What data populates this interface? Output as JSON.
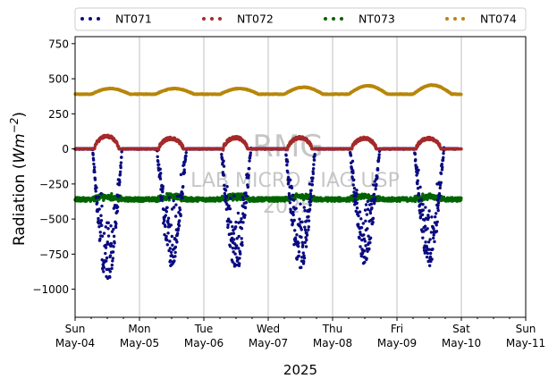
{
  "chart_data": {
    "type": "scatter",
    "title": "",
    "xlabel": "2025",
    "ylabel_main": "Radiation (",
    "ylabel_unit": "Wm",
    "ylabel_exp": "−2",
    "ylabel_close": ")",
    "ylim": [
      -1200,
      800
    ],
    "xlim_days": [
      0,
      7
    ],
    "yticks": [
      {
        "value": 750,
        "label": "750"
      },
      {
        "value": 500,
        "label": "500"
      },
      {
        "value": 250,
        "label": "250"
      },
      {
        "value": 0,
        "label": "0"
      },
      {
        "value": -250,
        "label": "−250"
      },
      {
        "value": -500,
        "label": "−500"
      },
      {
        "value": -750,
        "label": "−750"
      },
      {
        "value": -1000,
        "label": "−1000"
      }
    ],
    "xticks": [
      {
        "day": 0,
        "label1": "Sun",
        "label2": "May-04"
      },
      {
        "day": 1,
        "label1": "Mon",
        "label2": "May-05"
      },
      {
        "day": 2,
        "label1": "Tue",
        "label2": "May-06"
      },
      {
        "day": 3,
        "label1": "Wed",
        "label2": "May-07"
      },
      {
        "day": 4,
        "label1": "Thu",
        "label2": "May-08"
      },
      {
        "day": 5,
        "label1": "Fri",
        "label2": "May-09"
      },
      {
        "day": 6,
        "label1": "Sat",
        "label2": "May-10"
      },
      {
        "day": 7,
        "label1": "Sun",
        "label2": "May-11"
      }
    ],
    "grid": "x",
    "legend_position": "top",
    "watermark": [
      "RMG",
      "LAB MICRO - IAG USP",
      "2025"
    ],
    "series": [
      {
        "name": "NT071",
        "color": "#0a0a80",
        "description": "night ~0, daytime minima",
        "daily_minimum": [
          -960,
          -830,
          -880,
          -880,
          -810,
          -830
        ],
        "range_days": [
          0,
          5.95
        ]
      },
      {
        "name": "NT072",
        "color": "#a52a2a",
        "description": "night 0, daytime peaks",
        "daily_peak": [
          90,
          75,
          80,
          80,
          75,
          75
        ],
        "range_days": [
          0,
          6.0
        ]
      },
      {
        "name": "NT073",
        "color": "#006400",
        "description": "baseline around -350",
        "base": -360,
        "range_days": [
          0,
          6.0
        ]
      },
      {
        "name": "NT074",
        "color": "#b8860b",
        "description": "baseline around 400 with daytime bumps",
        "base": 390,
        "daily_bump": [
          430,
          430,
          430,
          440,
          450,
          455
        ],
        "range_days": [
          0,
          6.0
        ]
      }
    ]
  }
}
